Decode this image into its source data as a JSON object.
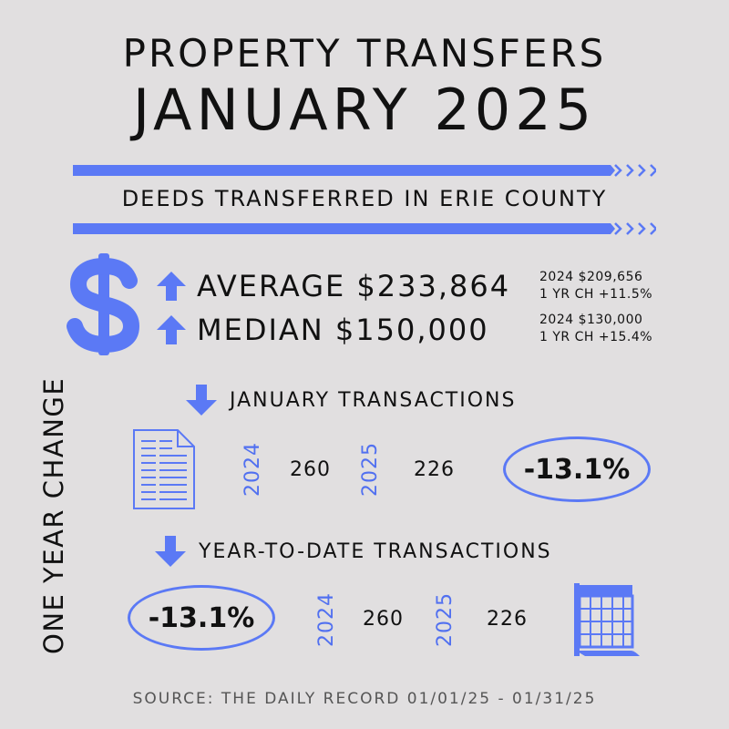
{
  "header": {
    "title_line1": "PROPERTY TRANSFERS",
    "title_line2": "JANUARY 2025",
    "subtitle": "DEEDS TRANSFERRED IN ERIE COUNTY"
  },
  "prices": {
    "average": {
      "label": "AVERAGE $233,864",
      "prior": "2024 $209,656",
      "change": "1 YR CH +11.5%",
      "direction": "up"
    },
    "median": {
      "label": "MEDIAN $150,000",
      "prior": "2024 $130,000",
      "change": "1 YR CH +15.4%",
      "direction": "up"
    }
  },
  "side_label": "ONE YEAR CHANGE",
  "january": {
    "title": "JANUARY TRANSACTIONS",
    "direction": "down",
    "year_a": "2024",
    "value_a": "260",
    "year_b": "2025",
    "value_b": "226",
    "change": "-13.1%",
    "icon": "document-icon"
  },
  "ytd": {
    "title": "YEAR-TO-DATE TRANSACTIONS",
    "direction": "down",
    "year_a": "2024",
    "value_a": "260",
    "year_b": "2025",
    "value_b": "226",
    "change": "-13.1%",
    "icon": "calendar-icon"
  },
  "footer": {
    "source": "SOURCE: THE DAILY RECORD 01/01/25 - 01/31/25"
  },
  "colors": {
    "accent": "#5b79f5",
    "background": "#e1dfe0",
    "text": "#111111"
  }
}
